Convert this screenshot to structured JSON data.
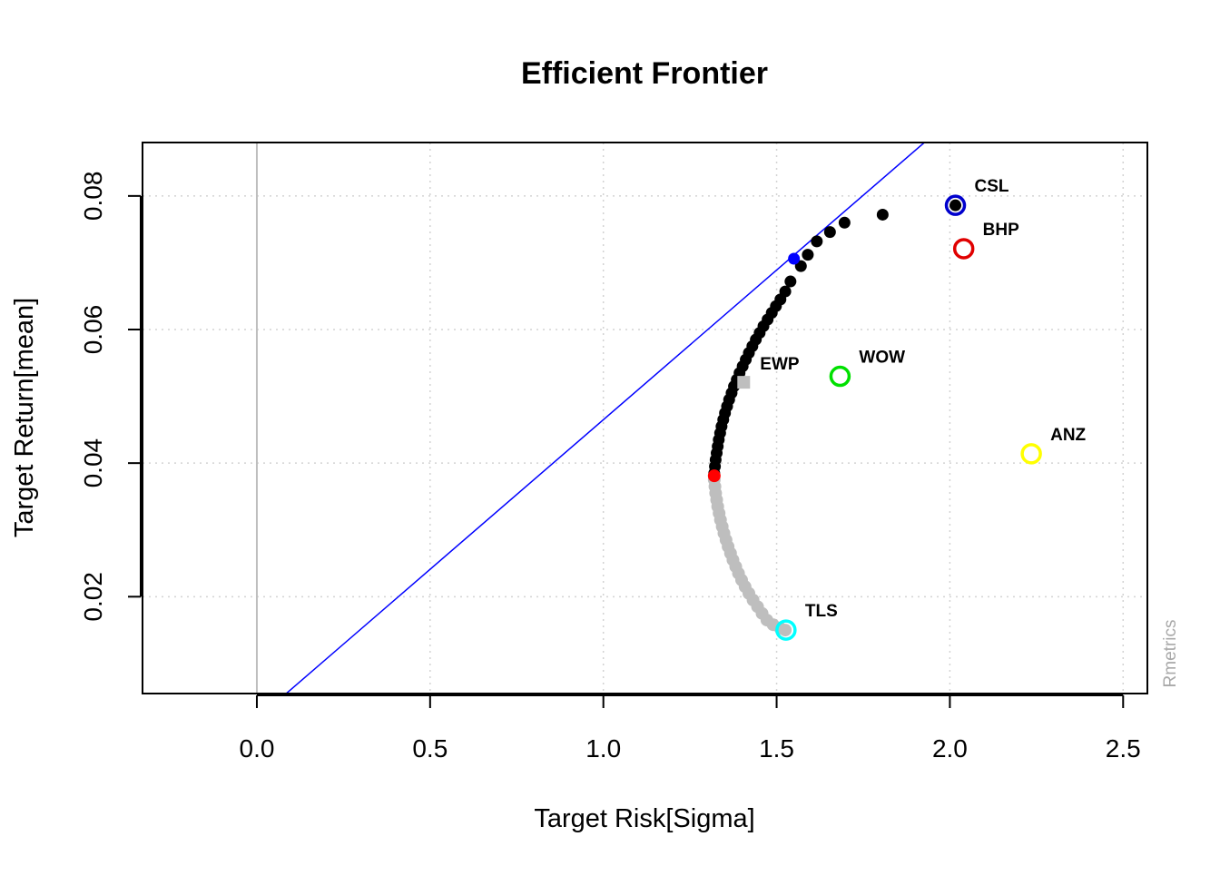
{
  "chart_data": {
    "type": "scatter",
    "title": "Efficient Frontier",
    "xlabel": "Target Risk[Sigma]",
    "ylabel": "Target Return[mean]",
    "xlim": [
      -0.33,
      2.57
    ],
    "ylim": [
      0.0055,
      0.088
    ],
    "x_ticks": [
      0.0,
      0.5,
      1.0,
      1.5,
      2.0,
      2.5
    ],
    "x_tick_labels": [
      "0.0",
      "0.5",
      "1.0",
      "1.5",
      "2.0",
      "2.5"
    ],
    "y_ticks": [
      0.02,
      0.04,
      0.06,
      0.08
    ],
    "y_tick_labels": [
      "0.02",
      "0.04",
      "0.06",
      "0.08"
    ],
    "grid": true,
    "watermark": "Rmetrics",
    "colors": {
      "frontier_efficient": "#000000",
      "frontier_inefficient": "#bebebe",
      "min_variance": "#ff0000",
      "tangency": "#0000ff",
      "tangency_line": "#0000ff",
      "ewp": "#bebebe",
      "vertical_axis_line": "#bebebe"
    },
    "tangency_line": {
      "x": [
        0.0,
        2.0
      ],
      "y": [
        0.0017,
        0.0913
      ]
    },
    "frontier_efficient": [
      [
        1.32,
        0.0385
      ],
      [
        1.322,
        0.0395
      ],
      [
        1.324,
        0.0405
      ],
      [
        1.327,
        0.0415
      ],
      [
        1.33,
        0.0425
      ],
      [
        1.333,
        0.0435
      ],
      [
        1.337,
        0.0445
      ],
      [
        1.341,
        0.0455
      ],
      [
        1.346,
        0.0465
      ],
      [
        1.351,
        0.0475
      ],
      [
        1.357,
        0.0485
      ],
      [
        1.363,
        0.0495
      ],
      [
        1.37,
        0.0505
      ],
      [
        1.377,
        0.0515
      ],
      [
        1.385,
        0.0525
      ],
      [
        1.393,
        0.0535
      ],
      [
        1.402,
        0.0545
      ],
      [
        1.411,
        0.0555
      ],
      [
        1.42,
        0.0565
      ],
      [
        1.43,
        0.0575
      ],
      [
        1.44,
        0.0585
      ],
      [
        1.451,
        0.0595
      ],
      [
        1.462,
        0.0605
      ],
      [
        1.474,
        0.0615
      ],
      [
        1.486,
        0.0625
      ],
      [
        1.498,
        0.0635
      ],
      [
        1.511,
        0.0645
      ],
      [
        1.525,
        0.0657
      ],
      [
        1.54,
        0.0672
      ],
      [
        1.57,
        0.0695
      ],
      [
        1.59,
        0.0712
      ],
      [
        1.616,
        0.0732
      ],
      [
        1.654,
        0.0746
      ],
      [
        1.696,
        0.076
      ],
      [
        1.806,
        0.0772
      ],
      [
        2.016,
        0.0786
      ]
    ],
    "frontier_inefficient": [
      [
        1.32,
        0.0375
      ],
      [
        1.322,
        0.0365
      ],
      [
        1.324,
        0.0355
      ],
      [
        1.327,
        0.0345
      ],
      [
        1.33,
        0.0335
      ],
      [
        1.334,
        0.0325
      ],
      [
        1.338,
        0.0315
      ],
      [
        1.343,
        0.0305
      ],
      [
        1.348,
        0.0295
      ],
      [
        1.354,
        0.0285
      ],
      [
        1.36,
        0.0275
      ],
      [
        1.367,
        0.0265
      ],
      [
        1.374,
        0.0255
      ],
      [
        1.382,
        0.0245
      ],
      [
        1.39,
        0.0235
      ],
      [
        1.399,
        0.0225
      ],
      [
        1.409,
        0.0215
      ],
      [
        1.42,
        0.0205
      ],
      [
        1.432,
        0.0195
      ],
      [
        1.445,
        0.0185
      ],
      [
        1.458,
        0.0175
      ],
      [
        1.472,
        0.0165
      ],
      [
        1.49,
        0.0158
      ],
      [
        1.51,
        0.0153
      ],
      [
        1.525,
        0.015
      ]
    ],
    "min_variance": {
      "x": 1.32,
      "y": 0.0381
    },
    "tangency": {
      "x": 1.55,
      "y": 0.0706
    },
    "ewp": {
      "label": "EWP",
      "x": 1.405,
      "y": 0.0521
    },
    "assets": [
      {
        "label": "CSL",
        "x": 2.016,
        "y": 0.0786,
        "color": "#0000cd"
      },
      {
        "label": "BHP",
        "x": 2.04,
        "y": 0.0721,
        "color": "#e00000"
      },
      {
        "label": "WOW",
        "x": 1.683,
        "y": 0.053,
        "color": "#00e000"
      },
      {
        "label": "ANZ",
        "x": 2.235,
        "y": 0.0414,
        "color": "#ffff00"
      },
      {
        "label": "TLS",
        "x": 1.527,
        "y": 0.015,
        "color": "#00ffff"
      }
    ]
  }
}
